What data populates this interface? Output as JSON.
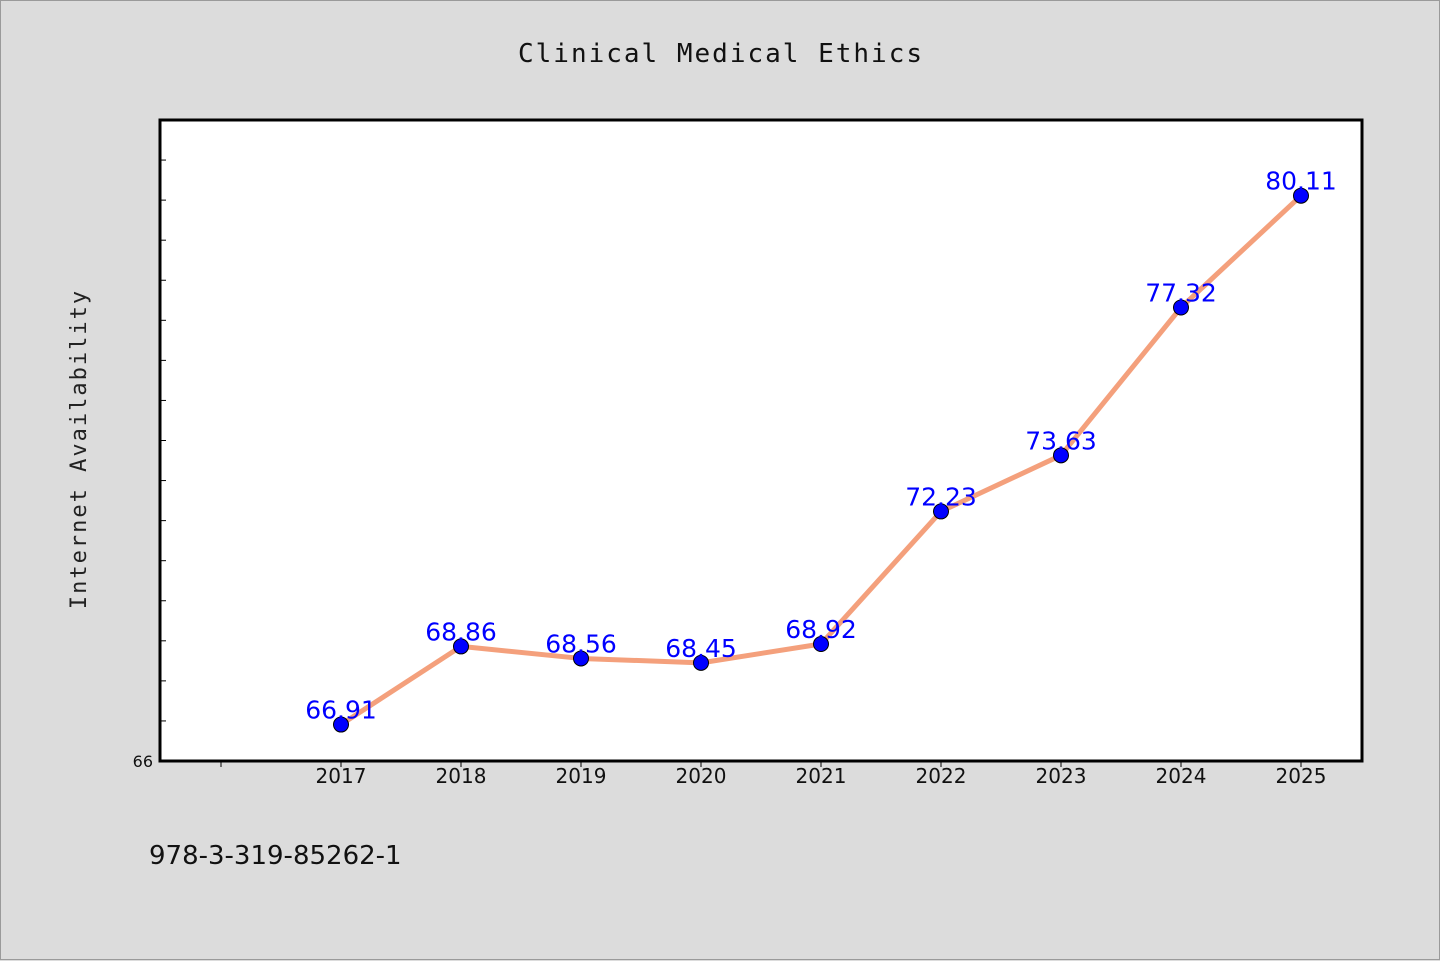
{
  "chart_data": {
    "type": "line",
    "title": "Clinical Medical Ethics",
    "xlabel": "",
    "ylabel": "Internet Availability",
    "categories": [
      "2017",
      "2018",
      "2019",
      "2020",
      "2021",
      "2022",
      "2023",
      "2024",
      "2025"
    ],
    "series": [
      {
        "values": [
          66.91,
          68.86,
          68.56,
          68.45,
          68.92,
          72.23,
          73.63,
          77.32,
          80.11
        ],
        "labels": [
          "66.91",
          "68.86",
          "68.56",
          "68.45",
          "68.92",
          "72.23",
          "73.63",
          "77.32",
          "80.11"
        ]
      }
    ],
    "yticks": [
      "66"
    ],
    "ylim": [
      66,
      82
    ],
    "grid": false,
    "legend": "none",
    "colors": {
      "line": "#f4a07c",
      "marker": "#0000ff",
      "label": "#0000ff",
      "plot_bg": "#ffffff",
      "page_bg": "#dcdcdc"
    }
  },
  "footer": {
    "isbn": "978-3-319-85262-1"
  }
}
